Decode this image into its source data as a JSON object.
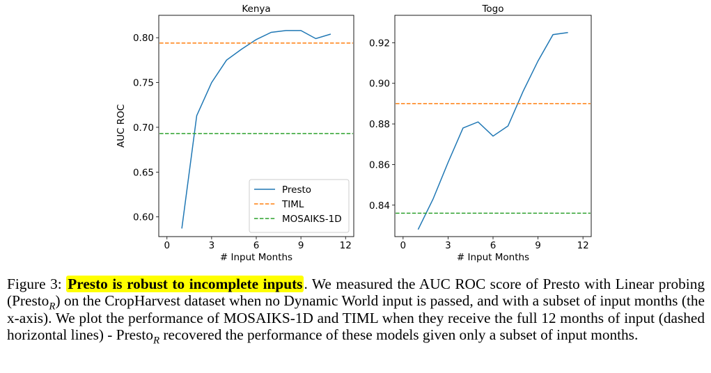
{
  "chart_data": [
    {
      "type": "line",
      "title": "Kenya",
      "xlabel": "# Input Months",
      "ylabel": "AUC ROC",
      "xlim": [
        -0.55,
        12.55
      ],
      "ylim": [
        0.578,
        0.825
      ],
      "xticks": [
        0,
        3,
        6,
        9,
        12
      ],
      "yticks": [
        0.6,
        0.65,
        0.7,
        0.75,
        0.8
      ],
      "ytick_labels": [
        "0.60",
        "0.65",
        "0.70",
        "0.75",
        "0.80"
      ],
      "grid": false,
      "legend": "lower-right",
      "series": [
        {
          "name": "Presto",
          "style": "solid",
          "color": "#1f77b4",
          "x": [
            1,
            2,
            3,
            4,
            5,
            6,
            7,
            8,
            9,
            10,
            11
          ],
          "y": [
            0.587,
            0.713,
            0.75,
            0.775,
            0.787,
            0.798,
            0.806,
            0.808,
            0.808,
            0.799,
            0.804
          ]
        },
        {
          "name": "TIML",
          "style": "dashed",
          "color": "#ff7f0e",
          "x": [
            -0.5,
            12.5
          ],
          "y": [
            0.794,
            0.794
          ]
        },
        {
          "name": "MOSAIKS-1D",
          "style": "dashed",
          "color": "#2ca02c",
          "x": [
            -0.5,
            12.5
          ],
          "y": [
            0.693,
            0.693
          ]
        }
      ]
    },
    {
      "type": "line",
      "title": "Togo",
      "xlabel": "# Input Months",
      "ylabel": "",
      "xlim": [
        -0.55,
        12.55
      ],
      "ylim": [
        0.8245,
        0.9335
      ],
      "xticks": [
        0,
        3,
        6,
        9,
        12
      ],
      "yticks": [
        0.84,
        0.86,
        0.88,
        0.9,
        0.92
      ],
      "ytick_labels": [
        "0.84",
        "0.86",
        "0.88",
        "0.90",
        "0.92"
      ],
      "grid": false,
      "legend": "none",
      "series": [
        {
          "name": "Presto",
          "style": "solid",
          "color": "#1f77b4",
          "x": [
            1,
            2,
            3,
            4,
            5,
            6,
            7,
            8,
            9,
            10,
            11
          ],
          "y": [
            0.828,
            0.843,
            0.861,
            0.878,
            0.881,
            0.874,
            0.879,
            0.896,
            0.911,
            0.924,
            0.925
          ]
        },
        {
          "name": "TIML",
          "style": "dashed",
          "color": "#ff7f0e",
          "x": [
            -0.5,
            12.5
          ],
          "y": [
            0.89,
            0.89
          ]
        },
        {
          "name": "MOSAIKS-1D",
          "style": "dashed",
          "color": "#2ca02c",
          "x": [
            -0.5,
            12.5
          ],
          "y": [
            0.836,
            0.836
          ]
        }
      ]
    }
  ],
  "caption": {
    "prefix": "Figure 3: ",
    "highlight": "Presto is robust to incomplete inputs",
    "after_highlight": ". We measured the AUC ROC score of Presto with Linear probing (Presto",
    "sub1": "R",
    "middle": ") on the CropHarvest dataset when no Dynamic World input is passed, and with a subset of input months (the x-axis). We plot the performance of MOSAIKS-1D and TIML when they receive the full 12 months of input (dashed horizontal lines) - Presto",
    "sub2": "R",
    "end": " recovered the performance of these models given only a subset of input months.",
    "highlight_color": "#ffff00"
  }
}
